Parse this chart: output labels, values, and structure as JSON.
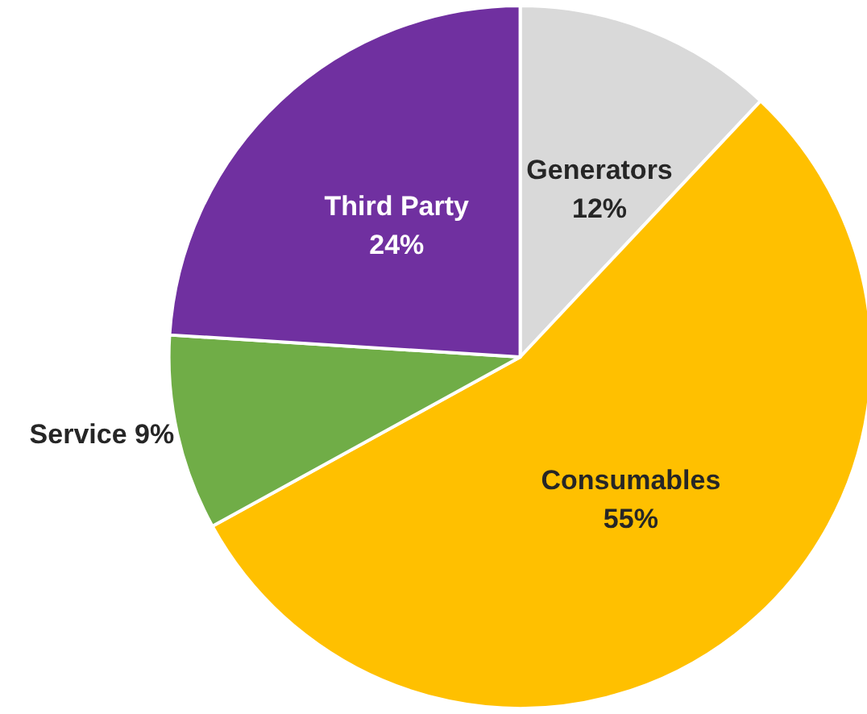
{
  "chart_data": {
    "type": "pie",
    "categories": [
      "Generators",
      "Consumables",
      "Service",
      "Third Party"
    ],
    "values": [
      12,
      55,
      9,
      24
    ],
    "colors": [
      "#d9d9d9",
      "#ffc000",
      "#70ad47",
      "#7030a0"
    ],
    "value_labels": [
      "12%",
      "55%",
      "9%",
      "24%"
    ],
    "legend": false
  }
}
